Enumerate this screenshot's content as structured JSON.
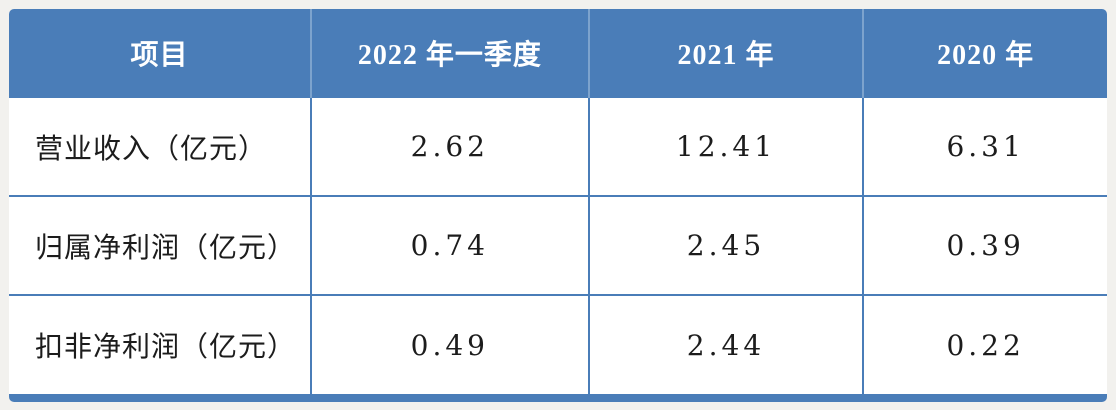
{
  "chart_data": {
    "type": "table",
    "columns": [
      "项目",
      "2022 年一季度",
      "2021 年",
      "2020 年"
    ],
    "rows": [
      [
        "营业收入（亿元）",
        "2.62",
        "12.41",
        "6.31"
      ],
      [
        "归属净利润（亿元）",
        "0.74",
        "2.45",
        "0.39"
      ],
      [
        "扣非净利润（亿元）",
        "0.49",
        "2.44",
        "0.22"
      ]
    ],
    "layout_hints": {
      "header_style": "solid blue band, white bold centered text",
      "first_column_align": "left",
      "value_columns_align": "center",
      "grid": "blue horizontal and vertical rules, thick blue bottom bar"
    }
  },
  "colors": {
    "header_bg": "#4a7db8",
    "header_text": "#ffffff",
    "header_divider": "#7da3cd",
    "grid": "#4a7db8",
    "body_bg": "#ffffff",
    "body_text": "#1c1c1c",
    "page_bg": "#f2f1ee"
  }
}
